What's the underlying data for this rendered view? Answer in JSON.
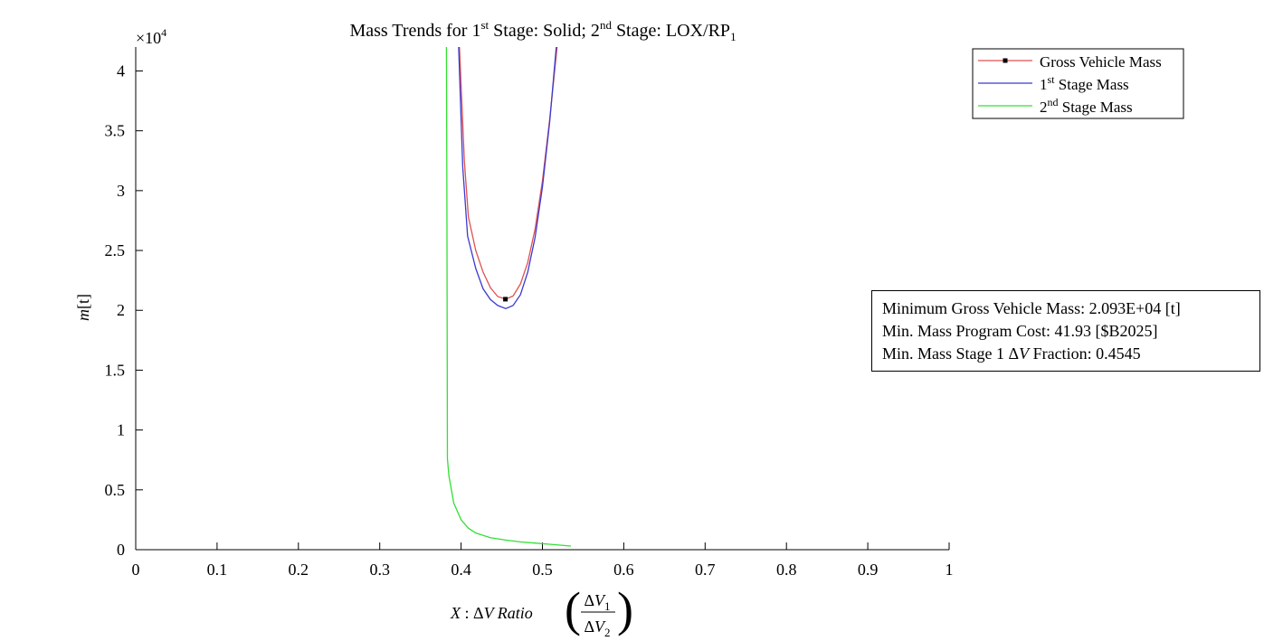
{
  "chart_data": {
    "type": "line",
    "title": {
      "prefix": "Mass Trends for 1",
      "sup1": "st",
      "mid": " Stage: Solid; 2",
      "sup2": "nd",
      "mid2": " Stage: LOX/RP",
      "sub": "1"
    },
    "xlabel": {
      "var": "X",
      "sep": " : ",
      "delta": "Δ",
      "vtext": "V Ratio ",
      "num_v": "V",
      "num_sub": "1",
      "den_v": "V",
      "den_sub": "2"
    },
    "ylabel": {
      "var": "m",
      "unit": "[t]"
    },
    "y_exponent": {
      "base": "×10",
      "power": "4"
    },
    "xlim": [
      0,
      1
    ],
    "ylim": [
      0,
      42000
    ],
    "xticks": [
      "0",
      "0.1",
      "0.2",
      "0.3",
      "0.4",
      "0.5",
      "0.6",
      "0.7",
      "0.8",
      "0.9",
      "1"
    ],
    "yticks": [
      "0",
      "0.5",
      "1",
      "1.5",
      "2",
      "2.5",
      "3",
      "3.5",
      "4"
    ],
    "x_tick_values": [
      0,
      0.1,
      0.2,
      0.3,
      0.4,
      0.5,
      0.6,
      0.7,
      0.8,
      0.9,
      1
    ],
    "y_tick_values": [
      0,
      5000,
      10000,
      15000,
      20000,
      25000,
      30000,
      35000,
      40000
    ],
    "legend_position": "top-right",
    "series": [
      {
        "name": "Gross Vehicle Mass",
        "color": "#e05050",
        "x": [
          0.398,
          0.404,
          0.409,
          0.418,
          0.427,
          0.436,
          0.445,
          0.455,
          0.464,
          0.473,
          0.482,
          0.491,
          0.5,
          0.509,
          0.518
        ],
        "y": [
          42000,
          32500,
          27800,
          25000,
          23200,
          21900,
          21150,
          20930,
          21200,
          22200,
          24000,
          26800,
          30800,
          36000,
          42000
        ]
      },
      {
        "name": "1st",
        "name_sup": "st",
        "name_rest": " Stage Mass",
        "name_base": "1",
        "color": "#3b3bd1",
        "x": [
          0.397,
          0.402,
          0.408,
          0.418,
          0.427,
          0.436,
          0.445,
          0.455,
          0.464,
          0.473,
          0.482,
          0.491,
          0.5,
          0.509,
          0.517
        ],
        "y": [
          42000,
          32000,
          26200,
          23500,
          21800,
          20900,
          20400,
          20150,
          20400,
          21300,
          23200,
          26100,
          30300,
          35800,
          42000
        ]
      },
      {
        "name": "2nd",
        "name_sup": "nd",
        "name_rest": " Stage Mass",
        "name_base": "2",
        "color": "#33e033",
        "x": [
          0.382,
          0.3825,
          0.3832,
          0.385,
          0.391,
          0.4,
          0.409,
          0.418,
          0.436,
          0.455,
          0.473,
          0.491,
          0.509,
          0.527,
          0.535
        ],
        "y": [
          42000,
          30000,
          7600,
          6200,
          3900,
          2500,
          1800,
          1400,
          1000,
          800,
          650,
          550,
          450,
          350,
          300
        ]
      }
    ],
    "minimum_marker": {
      "x": 0.4545,
      "y": 20930
    },
    "annotation": {
      "line1": "Minimum Gross Vehicle Mass: 2.093E+04 [t]",
      "line2": "Min. Mass Program Cost: 41.93 [$B2025]",
      "line3_prefix": "Min. Mass Stage 1 ",
      "line3_delta": "Δ",
      "line3_var": "V",
      "line3_suffix": " Fraction: 0.4545"
    }
  }
}
